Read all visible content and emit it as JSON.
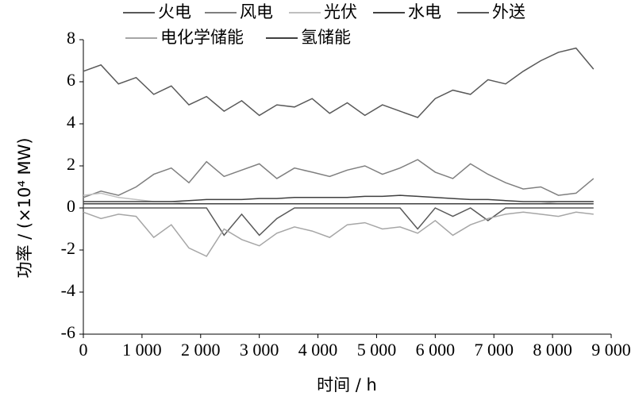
{
  "chart_data": {
    "type": "line",
    "ylabel": "功率 / (×10⁴ MW)",
    "xlabel": "时间 / h",
    "x": [
      0,
      300,
      600,
      900,
      1200,
      1500,
      1800,
      2100,
      2400,
      2700,
      3000,
      3300,
      3600,
      3900,
      4200,
      4500,
      4800,
      5100,
      5400,
      5700,
      6000,
      6300,
      6600,
      6900,
      7200,
      7500,
      7800,
      8100,
      8400,
      8700
    ],
    "series": [
      {
        "name": "火电",
        "color": "#595959",
        "values": [
          6.5,
          6.8,
          5.9,
          6.2,
          5.4,
          5.8,
          4.9,
          5.3,
          4.6,
          5.1,
          4.4,
          4.9,
          4.8,
          5.2,
          4.5,
          5.0,
          4.4,
          4.9,
          4.6,
          4.3,
          5.2,
          5.6,
          5.4,
          6.1,
          5.9,
          6.5,
          7.0,
          7.4,
          7.6,
          6.6
        ]
      },
      {
        "name": "风电",
        "color": "#7f7f7f",
        "values": [
          0.5,
          0.8,
          0.6,
          1.0,
          1.6,
          1.9,
          1.2,
          2.2,
          1.5,
          1.8,
          2.1,
          1.4,
          1.9,
          1.7,
          1.5,
          1.8,
          2.0,
          1.6,
          1.9,
          2.3,
          1.7,
          1.4,
          2.1,
          1.6,
          1.2,
          0.9,
          1.0,
          0.6,
          0.7,
          1.4
        ]
      },
      {
        "name": "光伏",
        "color": "#bfbfbf",
        "values": [
          0.6,
          0.7,
          0.5,
          0.4,
          0.3,
          0.3,
          0.2,
          0.2,
          0.2,
          0.2,
          0.2,
          0.2,
          0.2,
          0.2,
          0.2,
          0.2,
          0.2,
          0.2,
          0.2,
          0.2,
          0.2,
          0.2,
          0.2,
          0.2,
          0.2,
          0.2,
          0.2,
          0.3,
          0.3,
          0.3
        ]
      },
      {
        "name": "水电",
        "color": "#404040",
        "values": [
          0.3,
          0.3,
          0.3,
          0.3,
          0.3,
          0.3,
          0.35,
          0.4,
          0.4,
          0.4,
          0.45,
          0.45,
          0.5,
          0.5,
          0.5,
          0.5,
          0.55,
          0.55,
          0.6,
          0.55,
          0.5,
          0.45,
          0.4,
          0.4,
          0.35,
          0.3,
          0.3,
          0.3,
          0.3,
          0.3
        ]
      },
      {
        "name": "外送",
        "color": "#595959",
        "values": [
          0,
          0,
          0,
          0,
          0,
          0,
          0,
          0,
          -1.3,
          -0.3,
          -1.3,
          -0.5,
          0,
          0,
          0,
          0,
          0,
          0,
          0,
          -1.0,
          0,
          -0.4,
          0,
          -0.6,
          0,
          0,
          0,
          0,
          0,
          0
        ]
      },
      {
        "name": "电化学储能",
        "color": "#a6a6a6",
        "values": [
          -0.2,
          -0.5,
          -0.3,
          -0.4,
          -1.4,
          -0.8,
          -1.9,
          -2.3,
          -1.0,
          -1.5,
          -1.8,
          -1.2,
          -0.9,
          -1.1,
          -1.4,
          -0.8,
          -0.7,
          -1.0,
          -0.9,
          -1.2,
          -0.6,
          -1.3,
          -0.8,
          -0.5,
          -0.3,
          -0.2,
          -0.3,
          -0.4,
          -0.2,
          -0.3
        ]
      },
      {
        "name": "氢储能",
        "color": "#404040",
        "values": [
          0.2,
          0.2,
          0.2,
          0.2,
          0.2,
          0.2,
          0.2,
          0.2,
          0.2,
          0.2,
          0.2,
          0.2,
          0.2,
          0.2,
          0.2,
          0.2,
          0.2,
          0.2,
          0.2,
          0.2,
          0.2,
          0.2,
          0.2,
          0.2,
          0.2,
          0.2,
          0.2,
          0.2,
          0.2,
          0.2
        ]
      }
    ],
    "xlim": [
      0,
      9000
    ],
    "xticks": [
      0,
      {
        "value": 1000,
        "label": "1 000"
      },
      {
        "value": 2000,
        "label": "2 000"
      },
      {
        "value": 3000,
        "label": "3 000"
      },
      {
        "value": 4000,
        "label": "4 000"
      },
      {
        "value": 5000,
        "label": "5 000"
      },
      {
        "value": 6000,
        "label": "6 000"
      },
      {
        "value": 7000,
        "label": "7 000"
      },
      {
        "value": 8000,
        "label": "8 000"
      },
      {
        "value": 9000,
        "label": "9 000"
      }
    ],
    "ylim": [
      -6,
      8
    ],
    "yticks": [
      -6,
      -4,
      -2,
      0,
      2,
      4,
      6,
      8
    ],
    "grid": false
  }
}
